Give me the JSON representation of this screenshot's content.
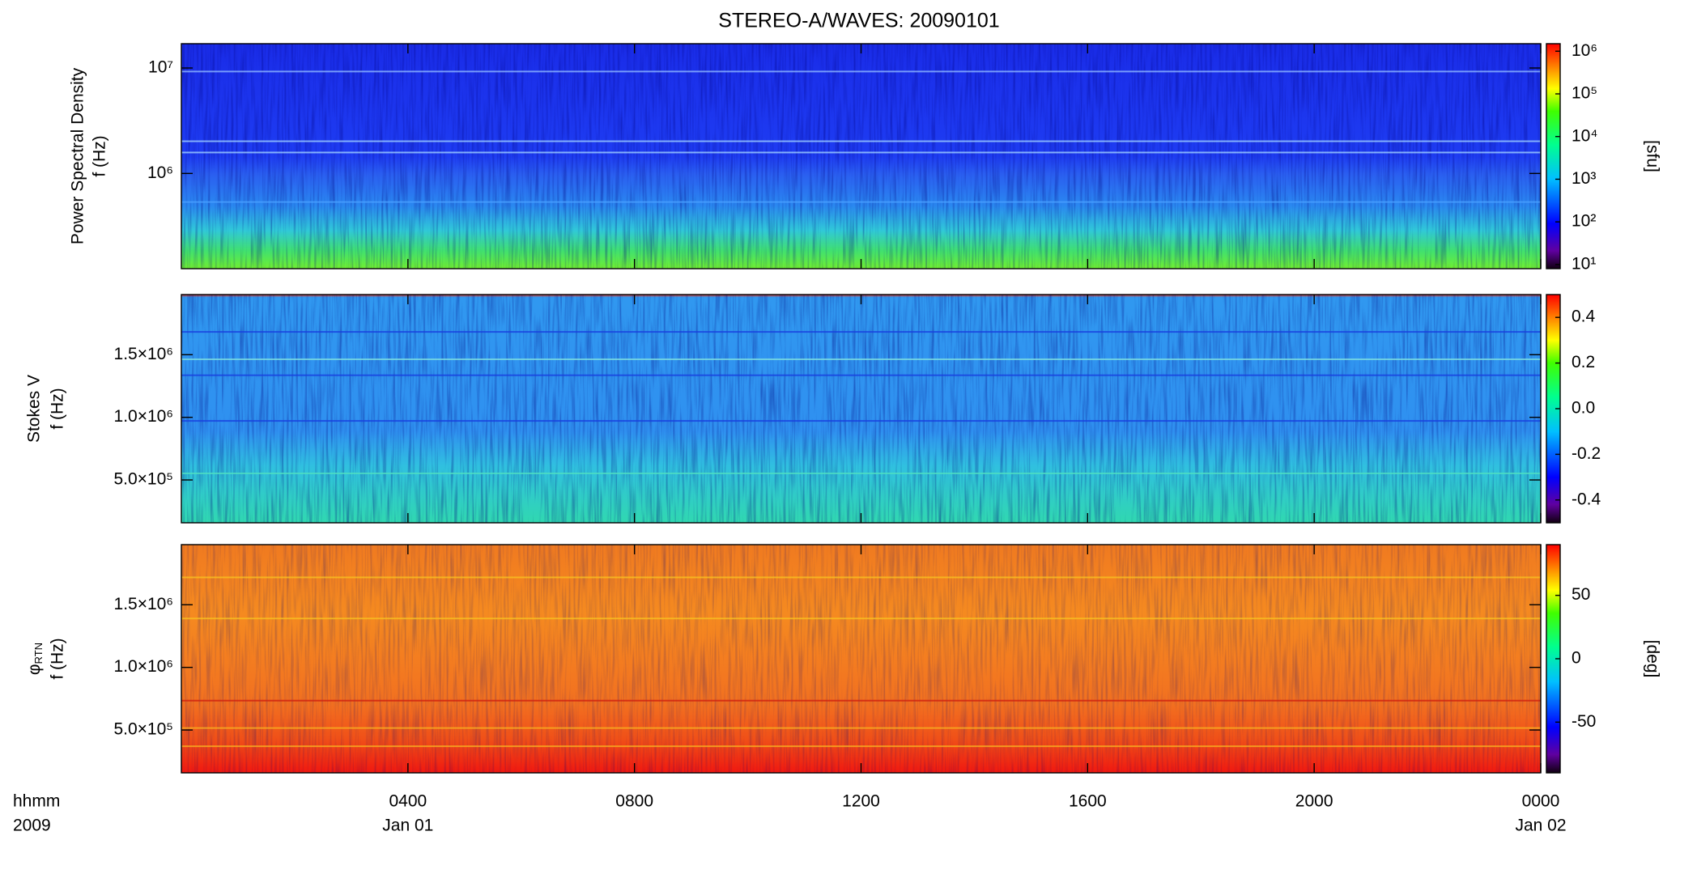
{
  "chart_data": [
    {
      "type": "spectrogram",
      "title": "STEREO-A/WAVES: 20090101",
      "ylabel": [
        "Power Spectral Density",
        "f (Hz)"
      ],
      "log_y": true,
      "ylim": [
        125000,
        17000000
      ],
      "yticks": [
        {
          "value": 1000000,
          "label": "10⁶"
        },
        {
          "value": 10000000,
          "label": "10⁷"
        }
      ],
      "colormap": "rainbow",
      "log_z": true,
      "zlim": [
        8,
        1500000
      ],
      "zticks": [
        {
          "value": 10,
          "label": "10¹"
        },
        {
          "value": 100,
          "label": "10²"
        },
        {
          "value": 1000,
          "label": "10³"
        },
        {
          "value": 10000,
          "label": "10⁴"
        },
        {
          "value": 100000,
          "label": "10⁵"
        },
        {
          "value": 1000000,
          "label": "10⁶"
        }
      ],
      "zlabel": "[sfu]"
    },
    {
      "type": "spectrogram",
      "ylabel": [
        "Stokes V",
        "f (Hz)"
      ],
      "log_y": false,
      "ylim": [
        158000,
        1980000
      ],
      "yticks": [
        {
          "value": 500000,
          "label": "5.0×10⁵"
        },
        {
          "value": 1000000,
          "label": "1.0×10⁶"
        },
        {
          "value": 1500000,
          "label": "1.5×10⁶"
        }
      ],
      "colormap": "rainbow",
      "log_z": false,
      "zlim": [
        -0.5,
        0.5
      ],
      "zticks": [
        -0.4,
        -0.2,
        {
          "value": 0,
          "label": "0.0"
        },
        0.2,
        0.4
      ]
    },
    {
      "type": "spectrogram",
      "ylabel_symbol": "φ",
      "ylabel_subscript": "RTN",
      "ylabel": [
        "f (Hz)"
      ],
      "log_y": false,
      "ylim": [
        158000,
        1980000
      ],
      "yticks": [
        {
          "value": 500000,
          "label": "5.0×10⁵"
        },
        {
          "value": 1000000,
          "label": "1.0×10⁶"
        },
        {
          "value": 1500000,
          "label": "1.5×10⁶"
        }
      ],
      "colormap": "rainbow",
      "log_z": false,
      "zlim": [
        -90,
        90
      ],
      "zticks": [
        -50,
        0,
        50
      ],
      "zlabel": "[deg]"
    }
  ],
  "x_axis": {
    "label_lines": [
      "hhmm",
      "2009"
    ],
    "xlim": [
      0,
      24
    ],
    "xticks": [
      {
        "value": 4,
        "label": "0400"
      },
      {
        "value": 8,
        "label": "0800"
      },
      {
        "value": 12,
        "label": "1200"
      },
      {
        "value": 16,
        "label": "1600"
      },
      {
        "value": 20,
        "label": "2000"
      },
      {
        "value": 24,
        "label": "0000"
      }
    ],
    "dates": [
      {
        "value": 4,
        "label": "Jan 01"
      },
      {
        "value": 24,
        "label": "Jan 02"
      }
    ]
  }
}
